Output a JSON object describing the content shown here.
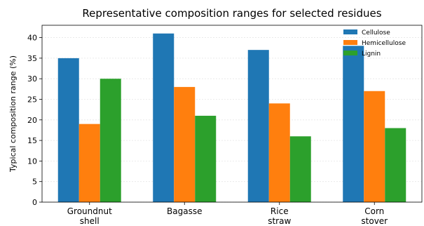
{
  "chart_data": {
    "type": "bar",
    "title": "Representative composition ranges for selected residues",
    "xlabel": "",
    "ylabel": "Typical composition range (%)",
    "categories": [
      [
        "Groundnut",
        "shell"
      ],
      [
        "Bagasse"
      ],
      [
        "Rice",
        "straw"
      ],
      [
        "Corn",
        "stover"
      ]
    ],
    "series": [
      {
        "name": "Cellulose",
        "color": "#1f77b4",
        "values": [
          35,
          41,
          37,
          38
        ]
      },
      {
        "name": "Hemicellulose",
        "color": "#ff7f0e",
        "values": [
          19,
          28,
          24,
          27
        ]
      },
      {
        "name": "Lignin",
        "color": "#2ca02c",
        "values": [
          30,
          21,
          16,
          18
        ]
      }
    ],
    "ylim": [
      0,
      43
    ],
    "yticks": [
      0,
      5,
      10,
      15,
      20,
      25,
      30,
      35,
      40
    ],
    "grid": "y-dashed",
    "legend": "top-right"
  }
}
